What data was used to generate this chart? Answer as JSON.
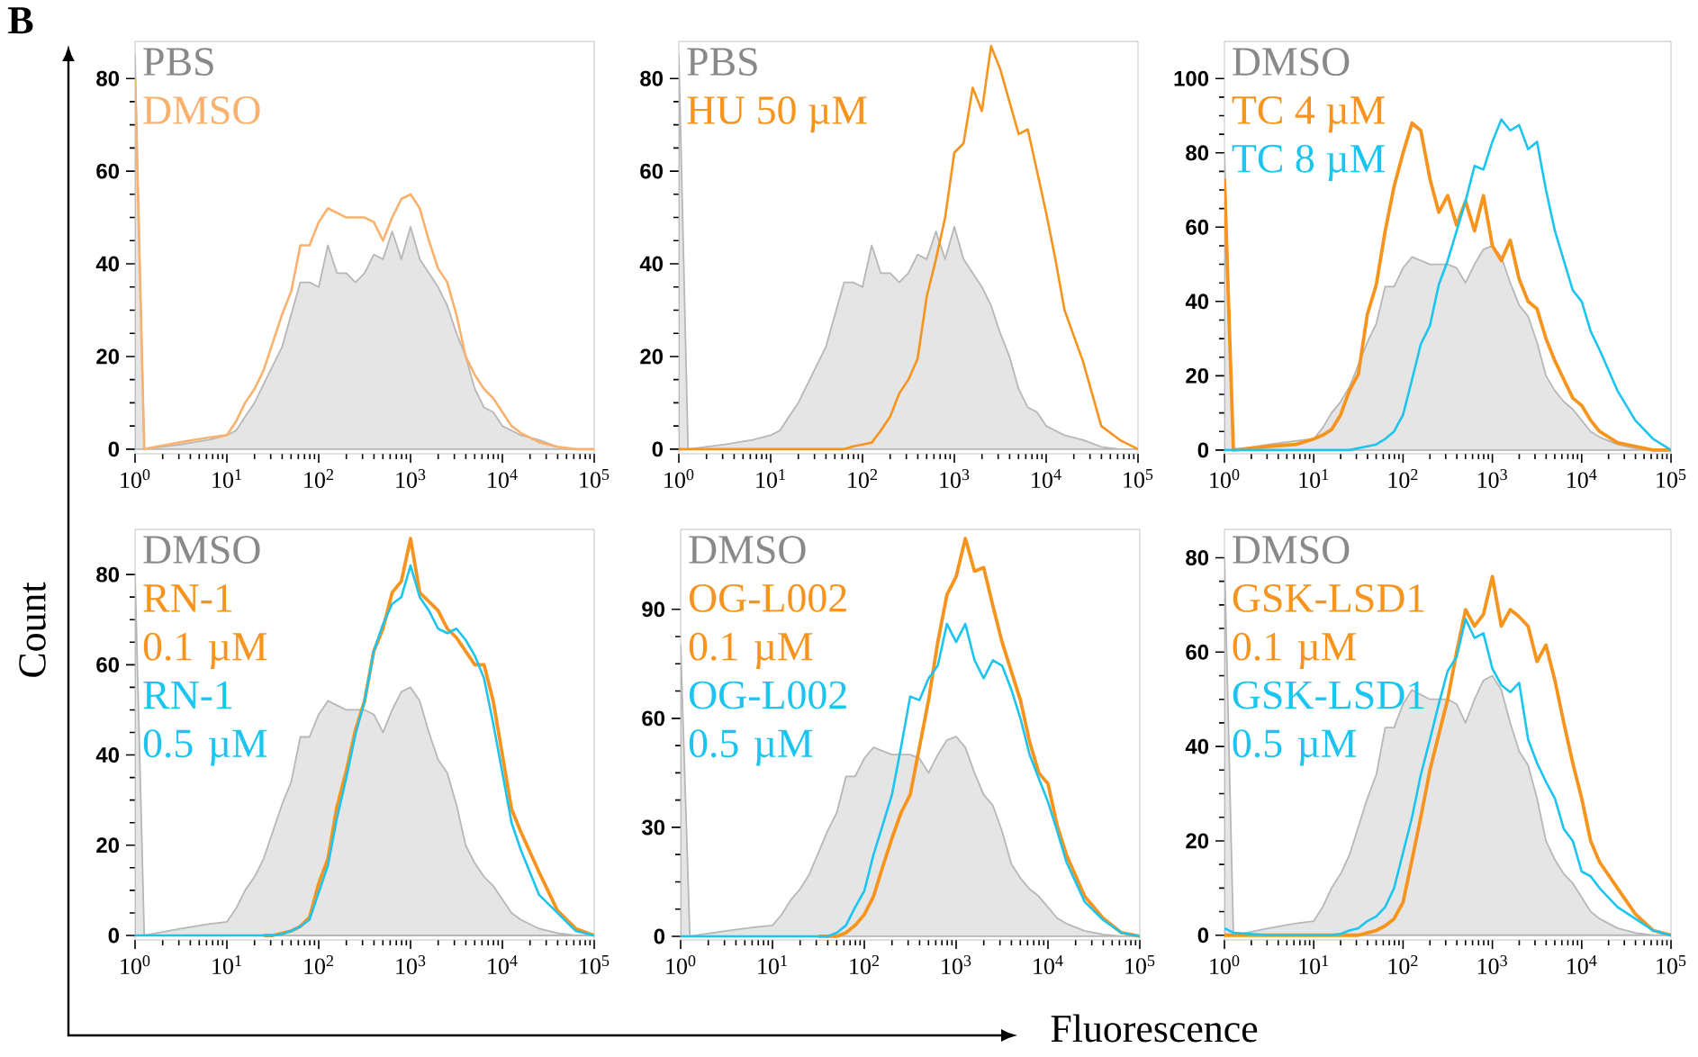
{
  "chart_data": [
    {
      "type": "line",
      "annotations": [
        "B"
      ],
      "log": "x",
      "legend": "top left",
      "xlim": [
        1,
        100000
      ],
      "ylim": [
        -1,
        88
      ],
      "yticks": [
        0,
        20,
        40,
        60,
        80
      ],
      "xticks": [
        {
          "value": 1,
          "label": "10$^{0}$"
        },
        {
          "value": 10,
          "label": "10$^{1}$"
        },
        {
          "value": 100,
          "label": "10$^{2}$"
        },
        {
          "value": 1000,
          "label": "10$^{3}$"
        },
        {
          "value": 10000,
          "label": "10$^{4}$"
        },
        {
          "value": 100000,
          "label": "10$^{5}$"
        }
      ],
      "x": [
        1,
        1.26,
        3.16,
        6.31,
        10,
        12.6,
        15.8,
        20,
        25.1,
        31.6,
        39.8,
        50.1,
        63.1,
        79.4,
        100,
        126,
        158,
        200,
        251,
        316,
        398,
        501,
        631,
        794,
        1000,
        1259,
        1585,
        1995,
        2512,
        3162,
        3981,
        5012,
        6310,
        7943,
        10000,
        12589,
        15849,
        25119,
        39811,
        63096,
        100000
      ],
      "series": [
        {
          "name": "PBS",
          "type": "area",
          "color": "#e5e5e5",
          "values": [
            85,
            0,
            1,
            2,
            3,
            4,
            7,
            10,
            14,
            18,
            22,
            29,
            36,
            36,
            35,
            44,
            38,
            38,
            36,
            38,
            42,
            41,
            47,
            41,
            48,
            41,
            38,
            35,
            31,
            25,
            20,
            13,
            9,
            8,
            5,
            4,
            3,
            2,
            0.5,
            0,
            0
          ]
        },
        {
          "name": "DMSO",
          "color": "#f9b26e",
          "values": [
            80,
            0,
            1.5,
            2.5,
            3,
            6,
            10,
            13,
            17,
            23,
            29,
            34,
            44,
            44,
            49,
            52,
            51,
            50,
            50,
            50,
            49,
            45,
            50,
            54,
            55,
            52,
            45,
            39,
            36,
            29,
            20,
            16,
            13,
            11,
            8,
            5,
            3.5,
            1.5,
            0.5,
            0,
            0
          ]
        }
      ]
    },
    {
      "type": "line",
      "log": "x",
      "legend": "top left",
      "xlim": [
        1,
        100000
      ],
      "ylim": [
        -1,
        88
      ],
      "yticks": [
        0,
        20,
        40,
        60,
        80
      ],
      "xticks": [
        {
          "value": 1,
          "label": "10$^{0}$"
        },
        {
          "value": 10,
          "label": "10$^{1}$"
        },
        {
          "value": 100,
          "label": "10$^{2}$"
        },
        {
          "value": 1000,
          "label": "10$^{3}$"
        },
        {
          "value": 10000,
          "label": "10$^{4}$"
        },
        {
          "value": 100000,
          "label": "10$^{5}$"
        }
      ],
      "x": [
        1,
        1.26,
        3.16,
        6.31,
        10,
        12.6,
        15.8,
        20,
        25.1,
        31.6,
        39.8,
        50.1,
        63.1,
        79.4,
        100,
        126,
        158,
        200,
        251,
        316,
        398,
        501,
        631,
        794,
        1000,
        1259,
        1585,
        1995,
        2512,
        3162,
        3981,
        5012,
        6310,
        7943,
        10000,
        12589,
        15849,
        25119,
        39811,
        63096,
        100000
      ],
      "series": [
        {
          "name": "PBS",
          "type": "area",
          "color": "#e5e5e5",
          "values": [
            85,
            0,
            1,
            2,
            3,
            4,
            7,
            10,
            14,
            18,
            22,
            29,
            36,
            36,
            35,
            44,
            38,
            38,
            36,
            38,
            42,
            41,
            47,
            41,
            48,
            41,
            38,
            35,
            31,
            25,
            20,
            13,
            9,
            8,
            5,
            4,
            3,
            2,
            0.5,
            0,
            0
          ]
        },
        {
          "name": "HU 50 µM",
          "color": "#f7941d",
          "values": [
            0,
            0,
            0,
            0,
            0,
            0,
            0,
            0,
            0,
            0,
            0,
            0,
            0,
            0.6,
            1,
            1.4,
            4,
            7,
            12,
            15,
            19.5,
            33,
            41,
            50,
            64,
            66,
            78,
            73,
            87,
            82,
            75,
            68,
            69,
            60,
            51,
            41,
            30,
            19,
            5,
            2,
            0
          ]
        }
      ]
    },
    {
      "type": "line",
      "log": "x",
      "legend": "top left",
      "xlim": [
        1,
        100000
      ],
      "ylim": [
        -1,
        110
      ],
      "yticks": [
        0,
        20,
        40,
        60,
        80,
        100
      ],
      "xticks": [
        {
          "value": 1,
          "label": "10$^{0}$"
        },
        {
          "value": 10,
          "label": "10$^{1}$"
        },
        {
          "value": 100,
          "label": "10$^{2}$"
        },
        {
          "value": 1000,
          "label": "10$^{3}$"
        },
        {
          "value": 10000,
          "label": "10$^{4}$"
        },
        {
          "value": 100000,
          "label": "10$^{5}$"
        }
      ],
      "x": [
        1,
        1.26,
        3.16,
        6.31,
        10,
        12.6,
        15.8,
        20,
        25.1,
        31.6,
        39.8,
        50.1,
        63.1,
        79.4,
        100,
        126,
        158,
        200,
        251,
        316,
        398,
        501,
        631,
        794,
        1000,
        1259,
        1585,
        1995,
        2512,
        3162,
        3981,
        5012,
        6310,
        7943,
        10000,
        12589,
        15849,
        25119,
        39811,
        63096,
        100000
      ],
      "series": [
        {
          "name": "DMSO",
          "type": "area",
          "color": "#e5e5e5",
          "values": [
            80,
            0,
            1.5,
            2.5,
            3,
            6,
            10,
            13,
            17,
            23,
            29,
            34,
            44,
            44,
            49,
            52,
            51,
            50,
            50,
            50,
            49,
            45,
            50,
            54,
            55,
            52,
            45,
            39,
            36,
            29,
            20,
            16,
            13,
            11,
            8,
            5,
            3.5,
            1.5,
            0.5,
            0,
            0
          ]
        },
        {
          "name": "TC 4 µM",
          "color": "#f7941d",
          "values": [
            73,
            0,
            1,
            1.5,
            3,
            4,
            5.5,
            9.5,
            16,
            20.5,
            36.5,
            44.5,
            59,
            71,
            80,
            88,
            86,
            73,
            64,
            68.5,
            60.5,
            67,
            59,
            68.5,
            55,
            51,
            56.5,
            46,
            40,
            38,
            30,
            24,
            19,
            14,
            12,
            8,
            5,
            2,
            1,
            0,
            0
          ]
        },
        {
          "name": "TC 8 µM",
          "color": "#1bc5f0",
          "values": [
            0,
            0,
            0,
            0,
            0,
            0,
            0,
            0,
            0,
            0.5,
            1,
            1.5,
            3,
            5,
            9.5,
            19,
            28.5,
            33.5,
            44.5,
            51,
            59,
            67,
            76.5,
            75.5,
            83,
            89,
            86,
            87.5,
            81,
            83,
            70,
            59,
            51,
            43,
            40,
            32,
            27,
            16,
            8,
            3,
            0
          ]
        }
      ]
    },
    {
      "type": "line",
      "ylabel": "Count",
      "log": "x",
      "legend": "top left",
      "xlim": [
        1,
        100000
      ],
      "ylim": [
        -1,
        90
      ],
      "yticks": [
        0,
        20,
        40,
        60,
        80
      ],
      "xticks": [
        {
          "value": 1,
          "label": "10$^{0}$"
        },
        {
          "value": 10,
          "label": "10$^{1}$"
        },
        {
          "value": 100,
          "label": "10$^{2}$"
        },
        {
          "value": 1000,
          "label": "10$^{3}$"
        },
        {
          "value": 10000,
          "label": "10$^{4}$"
        },
        {
          "value": 100000,
          "label": "10$^{5}$"
        }
      ],
      "x": [
        1,
        1.26,
        3.16,
        6.31,
        10,
        12.6,
        15.8,
        20,
        25.1,
        31.6,
        39.8,
        50.1,
        63.1,
        79.4,
        100,
        126,
        158,
        200,
        251,
        316,
        398,
        501,
        631,
        794,
        1000,
        1259,
        1585,
        1995,
        2512,
        3162,
        3981,
        5012,
        6310,
        7943,
        10000,
        12589,
        15849,
        25119,
        39811,
        63096,
        100000
      ],
      "series": [
        {
          "name": "DMSO",
          "type": "area",
          "color": "#e5e5e5",
          "values": [
            80,
            0,
            1.5,
            2.5,
            3,
            6,
            10,
            13,
            17,
            23,
            29,
            34,
            44,
            44,
            49,
            52,
            51,
            50,
            50,
            50,
            49,
            45,
            50,
            54,
            55,
            52,
            45,
            39,
            36,
            29,
            20,
            16,
            13,
            11,
            8,
            5,
            3.5,
            1.5,
            0.5,
            0,
            0
          ]
        },
        {
          "name": "RN-1 0.1 µM",
          "color": "#f7941d",
          "values": [
            null,
            null,
            null,
            null,
            null,
            null,
            null,
            null,
            0,
            0,
            0.5,
            1,
            2,
            4,
            11.5,
            17,
            28.5,
            36.5,
            45.5,
            52,
            63,
            68,
            76,
            78.5,
            88,
            76,
            74,
            72,
            68,
            66,
            63,
            60,
            60,
            52,
            40,
            28,
            23,
            14,
            5.5,
            1.5,
            0
          ]
        },
        {
          "name": "RN-1 0.5 µM",
          "color": "#1bc5f0",
          "values": [
            0,
            0,
            0,
            0,
            0,
            0,
            0,
            0,
            0,
            0,
            0.3,
            1,
            2,
            3.5,
            9.5,
            15.5,
            26,
            35,
            44.5,
            52,
            63,
            69,
            73.5,
            75,
            82,
            75,
            72,
            68,
            67,
            68,
            65.5,
            62,
            57,
            47,
            36,
            25,
            19,
            9,
            5,
            1,
            0
          ]
        }
      ]
    },
    {
      "type": "line",
      "xlabel": "Fluorescence",
      "log": "x",
      "legend": "top left",
      "xlim": [
        1,
        100000
      ],
      "ylim": [
        -1,
        112
      ],
      "yticks": [
        0,
        30,
        60,
        90
      ],
      "xticks": [
        {
          "value": 1,
          "label": "10$^{0}$"
        },
        {
          "value": 10,
          "label": "10$^{1}$"
        },
        {
          "value": 100,
          "label": "10$^{2}$"
        },
        {
          "value": 1000,
          "label": "10$^{3}$"
        },
        {
          "value": 10000,
          "label": "10$^{4}$"
        },
        {
          "value": 100000,
          "label": "10$^{5}$"
        }
      ],
      "x": [
        1,
        1.26,
        3.16,
        6.31,
        10,
        12.6,
        15.8,
        20,
        25.1,
        31.6,
        39.8,
        50.1,
        63.1,
        79.4,
        100,
        126,
        158,
        200,
        251,
        316,
        398,
        501,
        631,
        794,
        1000,
        1259,
        1585,
        1995,
        2512,
        3162,
        3981,
        5012,
        6310,
        7943,
        10000,
        12589,
        15849,
        25119,
        39811,
        63096,
        100000
      ],
      "series": [
        {
          "name": "DMSO",
          "type": "area",
          "color": "#e5e5e5",
          "values": [
            80,
            0,
            1.5,
            2.5,
            3,
            6,
            10,
            13,
            17,
            23,
            29,
            34,
            44,
            44,
            49,
            52,
            51,
            50,
            50,
            50,
            49,
            45,
            50,
            54,
            55,
            52,
            45,
            39,
            36,
            29,
            20,
            16,
            13,
            11,
            8,
            5,
            3.5,
            1.5,
            0.5,
            0,
            0
          ]
        },
        {
          "name": "OG-L002 0.1 µM",
          "color": "#f7941d",
          "values": [
            null,
            null,
            null,
            null,
            null,
            null,
            null,
            null,
            null,
            0,
            0,
            0,
            1,
            3,
            6,
            11,
            19,
            27,
            34,
            39,
            52,
            65,
            81,
            94,
            99,
            109.5,
            100.5,
            101.5,
            91,
            81,
            73,
            65,
            53.5,
            45,
            42,
            30.5,
            22.5,
            11,
            5,
            1,
            0
          ]
        },
        {
          "name": "OG-L002 0.5 µM",
          "color": "#1bc5f0",
          "values": [
            0,
            0,
            0,
            0,
            0,
            0,
            0,
            0,
            0,
            0,
            0,
            1,
            3,
            8,
            12.5,
            22.5,
            30.5,
            39,
            52,
            66,
            65,
            71,
            74.5,
            86,
            81,
            86,
            76,
            71,
            76,
            74.5,
            68,
            60,
            50,
            43.5,
            37,
            29,
            20.5,
            9.5,
            4.5,
            1,
            0
          ]
        }
      ]
    },
    {
      "type": "line",
      "log": "x",
      "legend": "top left",
      "xlim": [
        1,
        100000
      ],
      "ylim": [
        -1,
        86
      ],
      "yticks": [
        0,
        20,
        40,
        60,
        80
      ],
      "xticks": [
        {
          "value": 1,
          "label": "10$^{0}$"
        },
        {
          "value": 10,
          "label": "10$^{1}$"
        },
        {
          "value": 100,
          "label": "10$^{2}$"
        },
        {
          "value": 1000,
          "label": "10$^{3}$"
        },
        {
          "value": 10000,
          "label": "10$^{4}$"
        },
        {
          "value": 100000,
          "label": "10$^{5}$"
        }
      ],
      "x": [
        1,
        1.26,
        3.16,
        6.31,
        10,
        12.6,
        15.8,
        20,
        25.1,
        31.6,
        39.8,
        50.1,
        63.1,
        79.4,
        100,
        126,
        158,
        200,
        251,
        316,
        398,
        501,
        631,
        794,
        1000,
        1259,
        1585,
        1995,
        2512,
        3162,
        3981,
        5012,
        6310,
        7943,
        10000,
        12589,
        15849,
        25119,
        39811,
        63096,
        100000
      ],
      "series": [
        {
          "name": "DMSO",
          "type": "area",
          "color": "#e5e5e5",
          "values": [
            80,
            0,
            1.5,
            2.5,
            3,
            6,
            10,
            13,
            17,
            23,
            29,
            34,
            44,
            44,
            49,
            52,
            51,
            50,
            50,
            50,
            49,
            45,
            50,
            54,
            55,
            52,
            45,
            39,
            36,
            29,
            20,
            16,
            13,
            11,
            8,
            5,
            3.5,
            1.5,
            0.5,
            0,
            0
          ]
        },
        {
          "name": "GSK-LSD1 0.1 µM",
          "color": "#f7941d",
          "values": [
            0,
            0,
            0,
            0,
            0,
            0,
            0,
            0,
            0,
            0,
            0.5,
            1,
            2,
            3.5,
            7,
            16,
            25,
            35,
            42.5,
            50,
            60,
            69,
            65.5,
            68,
            76,
            65.5,
            69,
            67.5,
            65.5,
            58,
            61.5,
            54,
            45,
            36.5,
            29,
            20,
            15.5,
            10,
            4.5,
            1,
            0
          ]
        },
        {
          "name": "GSK-LSD1 0.5 µM",
          "color": "#1bc5f0",
          "values": [
            1.5,
            0.5,
            0,
            0,
            0,
            0,
            0,
            0.3,
            1,
            1.5,
            3,
            4,
            6,
            10,
            17.5,
            25,
            34,
            41.5,
            49,
            56,
            59,
            67,
            63,
            64,
            56.5,
            53,
            51.5,
            53.5,
            41.5,
            36.5,
            32.5,
            29,
            22.5,
            20,
            13.5,
            12.5,
            10,
            6,
            3.5,
            1,
            0
          ]
        }
      ]
    }
  ]
}
